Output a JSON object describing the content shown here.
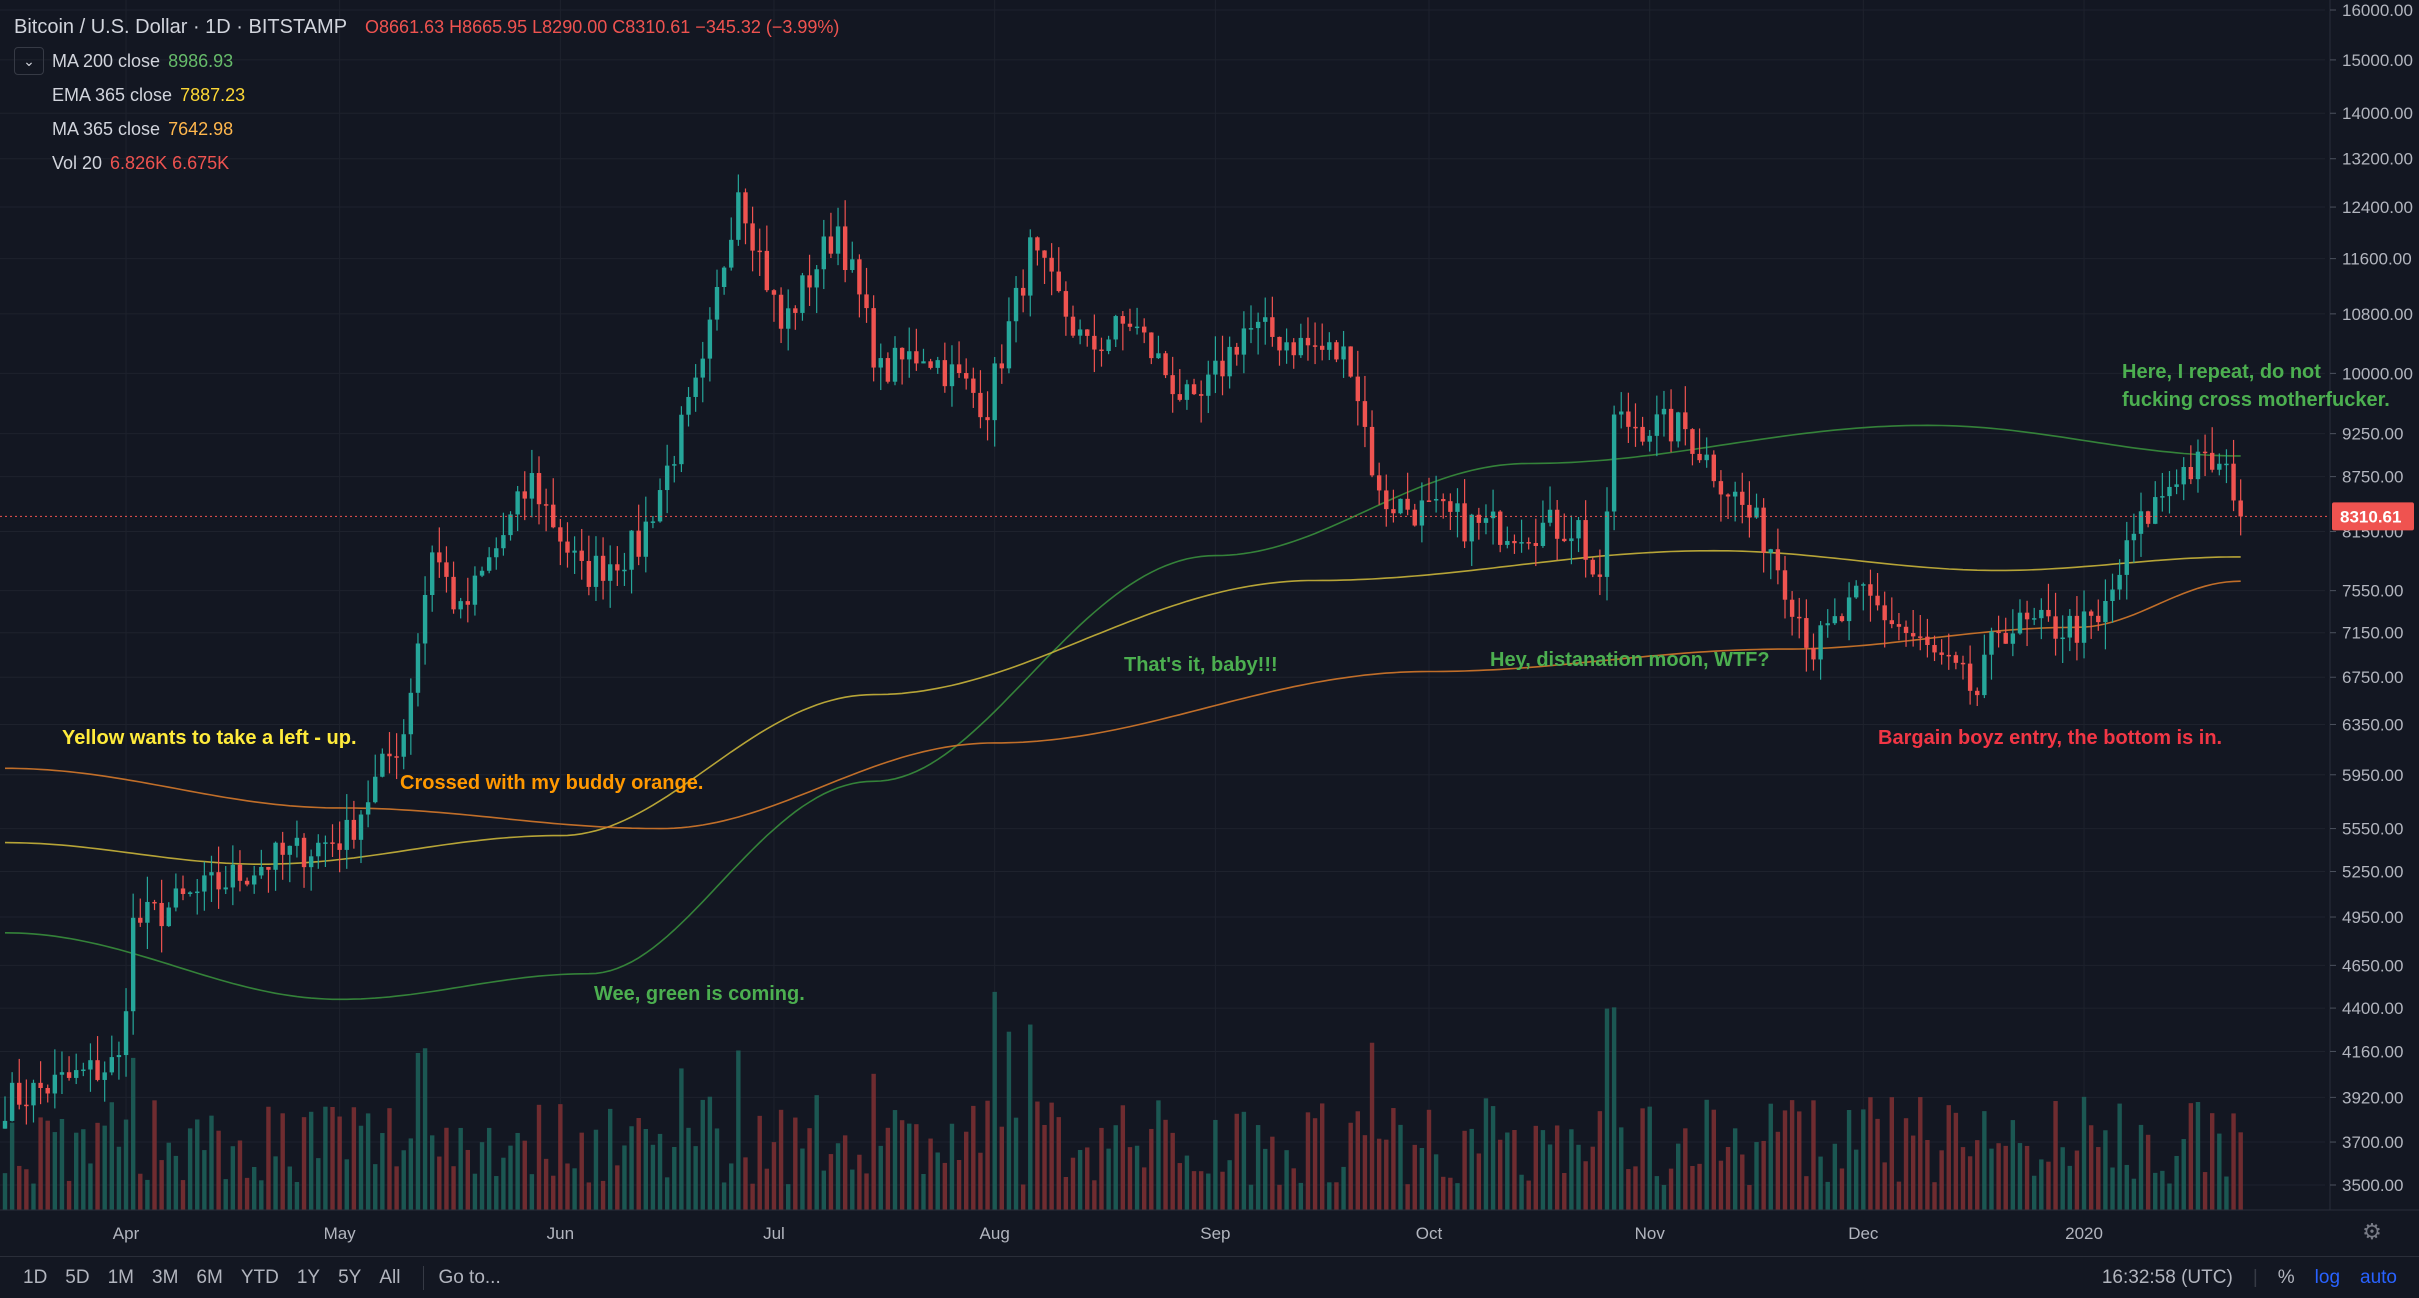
{
  "header": {
    "title": "Bitcoin / U.S. Dollar · 1D · BITSTAMP",
    "ohlc": "O8661.63 H8665.95 L8290.00 C8310.61 −345.32 (−3.99%)"
  },
  "indicators": [
    {
      "label": "MA 200 close",
      "value": "8986.93",
      "color": "#43a047"
    },
    {
      "label": "EMA 365 close",
      "value": "7887.23",
      "color": "#fdd835"
    },
    {
      "label": "MA 365 close",
      "value": "7642.98",
      "color": "#ff9800"
    },
    {
      "label": "Vol 20",
      "value": "6.826K  6.675K",
      "color": "#ef5350"
    }
  ],
  "annotations": [
    {
      "text": "Yellow wants to take a left - up.",
      "color": "#ffeb3b"
    },
    {
      "text": "Crossed with my buddy orange.",
      "color": "#ff9800"
    },
    {
      "text": "Wee, green is coming.",
      "color": "#4caf50"
    },
    {
      "text": "That's it, baby!!!",
      "color": "#4caf50"
    },
    {
      "text": "Hey, distanation moon, WTF?",
      "color": "#4caf50"
    },
    {
      "text": "Bargain boyz entry, the bottom is in.",
      "color": "#f23645"
    },
    {
      "text": "Here, I repeat, do not\nfucking cross motherfucker.",
      "color": "#4caf50"
    }
  ],
  "bottom_bar": {
    "ranges": [
      "1D",
      "5D",
      "1M",
      "3M",
      "6M",
      "YTD",
      "1Y",
      "5Y",
      "All"
    ],
    "goto": "Go to...",
    "time": "16:32:58 (UTC)",
    "percent": "%",
    "log": "log",
    "auto": "auto"
  },
  "colors": {
    "up": "#26a69a",
    "down": "#ef5350",
    "background": "#131722",
    "grid": "#1e222d"
  },
  "chart_data": {
    "type": "candlestick",
    "symbol": "Bitcoin / U.S. Dollar",
    "interval": "1D",
    "exchange": "BITSTAMP",
    "y_ticks": [
      3500,
      3700,
      3920,
      4160,
      4400,
      4650,
      4950,
      5250,
      5550,
      5950,
      6350,
      6750,
      7150,
      7550,
      8150,
      8750,
      9250,
      10000,
      10800,
      11600,
      12400,
      13200,
      14000,
      15000,
      16000
    ],
    "y_tick_labels": [
      "3500.00",
      "3700.00",
      "3920.00",
      "4160.00",
      "4400.00",
      "4650.00",
      "4950.00",
      "5250.00",
      "5550.00",
      "5950.00",
      "6350.00",
      "6750.00",
      "7150.00",
      "7550.00",
      "8150.00",
      "8750.00",
      "9250.00",
      "10000.00",
      "10800.00",
      "11600.00",
      "12400.00",
      "13200.00",
      "14000.00",
      "15000.00",
      "16000.00"
    ],
    "x_labels": [
      "Apr",
      "May",
      "Jun",
      "Jul",
      "Aug",
      "Sep",
      "Oct",
      "Nov",
      "Dec",
      "2020"
    ],
    "last_price": 8310.61,
    "last_price_label": "8310.61",
    "anchors": [
      [
        "2019-03-15",
        3900
      ],
      [
        "2019-03-31",
        4100
      ],
      [
        "2019-04-02",
        4900
      ],
      [
        "2019-04-20",
        5300
      ],
      [
        "2019-05-02",
        5500
      ],
      [
        "2019-05-10",
        6300
      ],
      [
        "2019-05-14",
        8000
      ],
      [
        "2019-05-18",
        7300
      ],
      [
        "2019-05-28",
        8700
      ],
      [
        "2019-06-04",
        7700
      ],
      [
        "2019-06-12",
        8000
      ],
      [
        "2019-06-21",
        10000
      ],
      [
        "2019-06-26",
        12800
      ],
      [
        "2019-07-02",
        10600
      ],
      [
        "2019-07-10",
        12100
      ],
      [
        "2019-07-16",
        10000
      ],
      [
        "2019-07-22",
        10300
      ],
      [
        "2019-07-31",
        9600
      ],
      [
        "2019-08-06",
        11700
      ],
      [
        "2019-08-14",
        10300
      ],
      [
        "2019-08-20",
        10700
      ],
      [
        "2019-08-29",
        9500
      ],
      [
        "2019-09-05",
        10600
      ],
      [
        "2019-09-20",
        10200
      ],
      [
        "2019-09-24",
        8500
      ],
      [
        "2019-10-08",
        8200
      ],
      [
        "2019-10-22",
        8200
      ],
      [
        "2019-10-25",
        7500
      ],
      [
        "2019-10-27",
        9400
      ],
      [
        "2019-11-06",
        9300
      ],
      [
        "2019-11-18",
        8000
      ],
      [
        "2019-11-24",
        7000
      ],
      [
        "2019-12-01",
        7500
      ],
      [
        "2019-12-17",
        6600
      ],
      [
        "2019-12-20",
        7200
      ],
      [
        "2020-01-03",
        7200
      ],
      [
        "2020-01-08",
        8100
      ],
      [
        "2020-01-14",
        8800
      ],
      [
        "2020-01-19",
        8900
      ],
      [
        "2020-01-22",
        8650
      ],
      [
        "2020-01-23",
        8310
      ]
    ],
    "ma200": [
      [
        "2019-03-15",
        4850
      ],
      [
        "2019-05-01",
        4450
      ],
      [
        "2019-06-05",
        4600
      ],
      [
        "2019-07-15",
        5900
      ],
      [
        "2019-09-01",
        7900
      ],
      [
        "2019-10-15",
        8900
      ],
      [
        "2019-12-10",
        9350
      ],
      [
        "2020-01-23",
        8987
      ]
    ],
    "ema365": [
      [
        "2019-03-15",
        5450
      ],
      [
        "2019-04-20",
        5300
      ],
      [
        "2019-06-01",
        5500
      ],
      [
        "2019-07-15",
        6600
      ],
      [
        "2019-09-15",
        7650
      ],
      [
        "2019-11-10",
        7950
      ],
      [
        "2019-12-20",
        7750
      ],
      [
        "2020-01-23",
        7887
      ]
    ],
    "ma365": [
      [
        "2019-03-15",
        6000
      ],
      [
        "2019-05-01",
        5700
      ],
      [
        "2019-06-15",
        5550
      ],
      [
        "2019-08-01",
        6200
      ],
      [
        "2019-10-01",
        6800
      ],
      [
        "2019-11-20",
        7000
      ],
      [
        "2019-12-31",
        7200
      ],
      [
        "2020-01-23",
        7643
      ]
    ]
  }
}
